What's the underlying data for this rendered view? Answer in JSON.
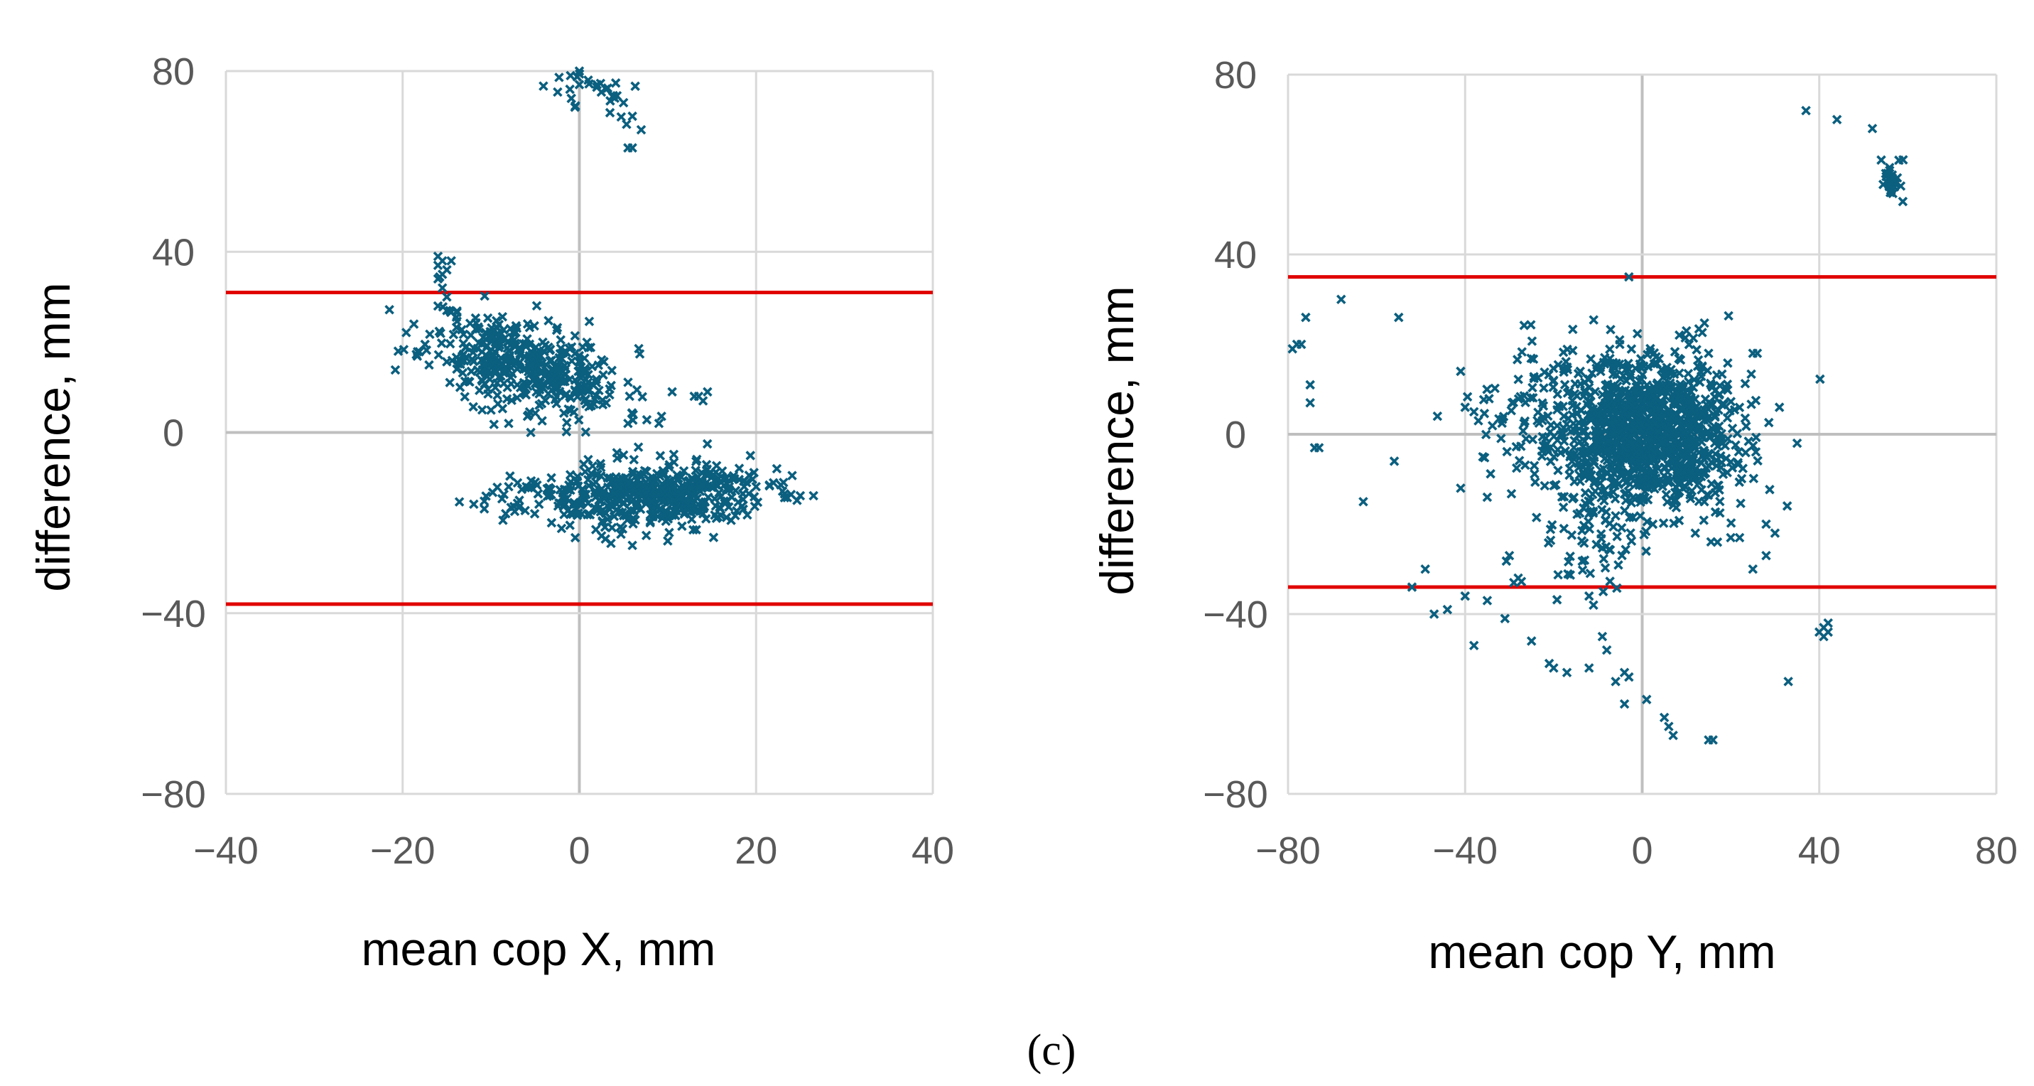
{
  "caption": "(c)",
  "colors": {
    "marker": "#0b5f7f",
    "limit_line": "#e00000",
    "grid": "#d9d9d9",
    "zero_axis": "#bfbfbf"
  },
  "chart_data": [
    {
      "type": "scatter",
      "xlabel": "mean cop X, mm",
      "ylabel": "difference, mm",
      "xlim": [
        -40,
        40
      ],
      "ylim": [
        -80,
        80
      ],
      "xticks": [
        -40,
        -20,
        0,
        20,
        40
      ],
      "yticks": [
        -80,
        -40,
        0,
        40,
        80
      ],
      "x_tick_labels": [
        "−40",
        "−20",
        "0",
        "20",
        "40"
      ],
      "y_tick_labels": [
        "−80",
        "−40",
        "0",
        "40",
        "80"
      ],
      "grid": true,
      "marker": "x",
      "limit_lines": [
        31,
        -38
      ],
      "clusters": [
        {
          "cx": -6,
          "cy": 15,
          "sx": 5.5,
          "sy": 5,
          "n": 420,
          "seed": 11,
          "tilt": -0.5
        },
        {
          "cx": 7,
          "cy": -14,
          "sx": 7,
          "sy": 3.5,
          "n": 520,
          "seed": 23,
          "tilt": 0.05
        },
        {
          "cx": 1,
          "cy": 76,
          "sx": 2.5,
          "sy": 3,
          "n": 30,
          "seed": 37,
          "tilt": -0.6
        }
      ],
      "points": [
        [
          -20.5,
          18
        ],
        [
          -15.5,
          38
        ],
        [
          -15,
          36
        ],
        [
          -16,
          34
        ],
        [
          -15.5,
          32
        ],
        [
          -15,
          30
        ],
        [
          -16,
          28
        ],
        [
          -16,
          37
        ],
        [
          -14.5,
          38
        ],
        [
          -15.5,
          35
        ],
        [
          -16,
          39
        ],
        [
          -15,
          27
        ],
        [
          0,
          80
        ],
        [
          -1,
          79
        ],
        [
          0,
          77
        ],
        [
          -0.5,
          72
        ],
        [
          1,
          78
        ],
        [
          2,
          77
        ],
        [
          3,
          76
        ],
        [
          4,
          74
        ],
        [
          5,
          73
        ],
        [
          6,
          70
        ],
        [
          7,
          67
        ],
        [
          6,
          63
        ],
        [
          5.5,
          63
        ],
        [
          -13.5,
          10
        ],
        [
          -11,
          5
        ],
        [
          -8,
          2
        ],
        [
          -5.5,
          0
        ],
        [
          5.5,
          2
        ],
        [
          9,
          2
        ],
        [
          10.5,
          9
        ],
        [
          13,
          8
        ],
        [
          14,
          7
        ],
        [
          14.5,
          9
        ],
        [
          13.5,
          8
        ],
        [
          26.5,
          -14
        ],
        [
          25,
          -14
        ],
        [
          23,
          -13
        ],
        [
          20,
          -12
        ],
        [
          -8,
          -12
        ],
        [
          -6,
          -12
        ],
        [
          -5,
          -11
        ],
        [
          6,
          -25
        ],
        [
          10,
          -24
        ],
        [
          1,
          -6
        ],
        [
          5,
          -5
        ],
        [
          14,
          -18
        ]
      ]
    },
    {
      "type": "scatter",
      "xlabel": "mean cop Y, mm",
      "ylabel": "difference, mm",
      "xlim": [
        -80,
        80
      ],
      "ylim": [
        -80,
        80
      ],
      "xticks": [
        -80,
        -40,
        0,
        40,
        80
      ],
      "yticks": [
        -80,
        -40,
        0,
        40,
        80
      ],
      "x_tick_labels": [
        "−80",
        "−40",
        "0",
        "40",
        "80"
      ],
      "y_tick_labels": [
        "−80",
        "−40",
        "0",
        "40",
        "80"
      ],
      "grid": true,
      "marker": "x",
      "limit_lines": [
        35,
        -34
      ],
      "clusters": [
        {
          "cx": 2,
          "cy": 0,
          "sx": 10,
          "sy": 8.5,
          "n": 1100,
          "seed": 51,
          "tilt": 0
        },
        {
          "cx": -20,
          "cy": 3,
          "sx": 9,
          "sy": 8,
          "n": 140,
          "seed": 67,
          "tilt": 0
        },
        {
          "cx": -12,
          "cy": -22,
          "sx": 6,
          "sy": 6,
          "n": 60,
          "seed": 79,
          "tilt": 0
        },
        {
          "cx": 56.5,
          "cy": 56,
          "sx": 1,
          "sy": 2,
          "n": 30,
          "seed": 83,
          "tilt": 0
        }
      ],
      "points": [
        [
          -79,
          19
        ],
        [
          -78,
          20
        ],
        [
          -77,
          20
        ],
        [
          -76,
          26
        ],
        [
          -75,
          11
        ],
        [
          -75,
          7
        ],
        [
          -73,
          -3
        ],
        [
          -74,
          -3
        ],
        [
          -68,
          30
        ],
        [
          -63,
          -15
        ],
        [
          -55,
          26
        ],
        [
          -56,
          -6
        ],
        [
          -52,
          -34
        ],
        [
          -49,
          -30
        ],
        [
          -47,
          -40
        ],
        [
          -44,
          -39
        ],
        [
          -40,
          -36
        ],
        [
          -38,
          -47
        ],
        [
          -35,
          -37
        ],
        [
          -31,
          -41
        ],
        [
          -30,
          -27
        ],
        [
          -28,
          -32
        ],
        [
          -29,
          -33
        ],
        [
          -25,
          -46
        ],
        [
          -21,
          -51
        ],
        [
          -20,
          -52
        ],
        [
          -17,
          -53
        ],
        [
          -12,
          -52
        ],
        [
          -9,
          -45
        ],
        [
          -8,
          -48
        ],
        [
          -6,
          -55
        ],
        [
          -4,
          -53
        ],
        [
          -3,
          -54
        ],
        [
          -4,
          -60
        ],
        [
          1,
          -59
        ],
        [
          5,
          -63
        ],
        [
          6,
          -65
        ],
        [
          7,
          -67
        ],
        [
          15,
          -68
        ],
        [
          16,
          -68
        ],
        [
          -3,
          35
        ],
        [
          -41,
          14
        ],
        [
          -40,
          6
        ],
        [
          -38,
          5
        ],
        [
          -37,
          3
        ],
        [
          -36,
          -5
        ],
        [
          -41,
          -12
        ],
        [
          -35,
          -14
        ],
        [
          35,
          -2
        ],
        [
          31,
          6
        ],
        [
          30,
          -22
        ],
        [
          28,
          -20
        ],
        [
          25,
          -30
        ],
        [
          28,
          -27
        ],
        [
          33,
          -55
        ],
        [
          40,
          -44
        ],
        [
          41,
          -43
        ],
        [
          42,
          -44
        ],
        [
          41,
          -45
        ],
        [
          42,
          -42
        ],
        [
          37,
          72
        ],
        [
          44,
          70
        ],
        [
          52,
          68
        ],
        [
          55,
          58
        ],
        [
          54,
          61
        ],
        [
          -12,
          -36
        ],
        [
          -11,
          -38
        ],
        [
          -13,
          -28
        ],
        [
          20,
          -23
        ],
        [
          22,
          -23
        ],
        [
          17,
          -24
        ],
        [
          12,
          -22
        ],
        [
          15,
          18
        ],
        [
          10,
          23
        ],
        [
          25,
          18
        ],
        [
          26,
          18
        ],
        [
          -14,
          14
        ],
        [
          -20,
          12
        ]
      ]
    }
  ]
}
